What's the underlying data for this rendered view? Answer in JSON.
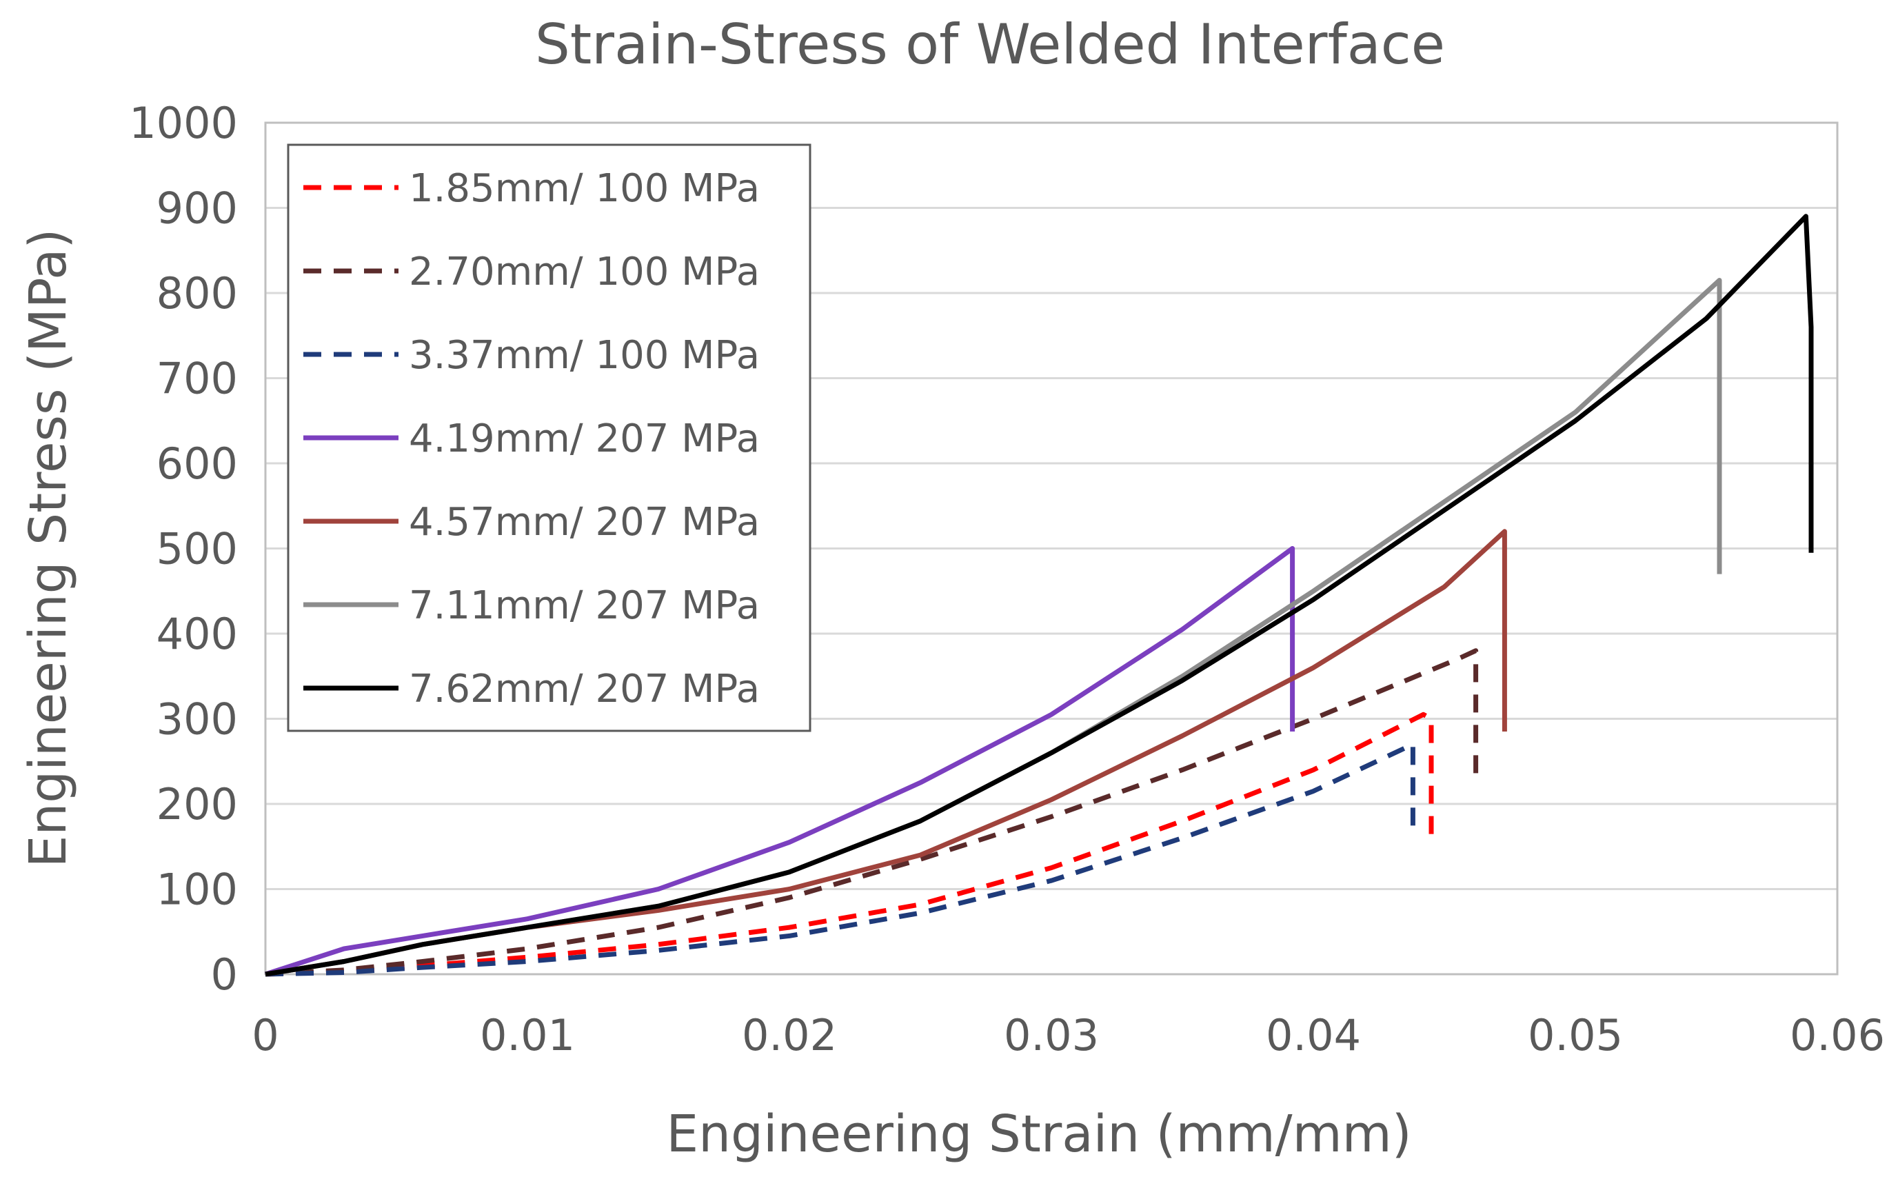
{
  "chart_data": {
    "type": "line",
    "title": "Strain-Stress of Welded Interface",
    "xlabel": "Engineering Strain (mm/mm)",
    "ylabel": "Engineering Stress (MPa)",
    "xlim": [
      0,
      0.06
    ],
    "ylim": [
      0,
      1000
    ],
    "grid": "horizontal",
    "legend_position": "top-left",
    "x_ticks": [
      0,
      0.01,
      0.02,
      0.03,
      0.04,
      0.05,
      0.06
    ],
    "x_tick_labels": [
      "0",
      "0.01",
      "0.02",
      "0.03",
      "0.04",
      "0.05",
      "0.06"
    ],
    "y_ticks": [
      0,
      100,
      200,
      300,
      400,
      500,
      600,
      700,
      800,
      900,
      1000
    ],
    "y_tick_labels": [
      "0",
      "100",
      "200",
      "300",
      "400",
      "500",
      "600",
      "700",
      "800",
      "900",
      "1000"
    ],
    "series": [
      {
        "name": "1.85mm/ 100 MPa",
        "color": "#ff0000",
        "dash": "dashed",
        "points": [
          [
            0,
            0
          ],
          [
            0.003,
            3
          ],
          [
            0.006,
            10
          ],
          [
            0.01,
            20
          ],
          [
            0.015,
            35
          ],
          [
            0.02,
            55
          ],
          [
            0.025,
            82
          ],
          [
            0.03,
            125
          ],
          [
            0.035,
            180
          ],
          [
            0.04,
            240
          ],
          [
            0.0442,
            305
          ],
          [
            0.0445,
            300
          ],
          [
            0.0445,
            160
          ]
        ]
      },
      {
        "name": "2.70mm/ 100 MPa",
        "color": "#5a2a2a",
        "dash": "dashed",
        "points": [
          [
            0,
            0
          ],
          [
            0.003,
            5
          ],
          [
            0.006,
            15
          ],
          [
            0.01,
            30
          ],
          [
            0.015,
            55
          ],
          [
            0.02,
            90
          ],
          [
            0.025,
            135
          ],
          [
            0.03,
            185
          ],
          [
            0.035,
            240
          ],
          [
            0.04,
            300
          ],
          [
            0.0455,
            370
          ],
          [
            0.0462,
            380
          ],
          [
            0.0462,
            225
          ]
        ]
      },
      {
        "name": "3.37mm/ 100 MPa",
        "color": "#1f3b7a",
        "dash": "dashed",
        "points": [
          [
            0,
            0
          ],
          [
            0.003,
            2
          ],
          [
            0.006,
            8
          ],
          [
            0.01,
            15
          ],
          [
            0.015,
            28
          ],
          [
            0.02,
            45
          ],
          [
            0.025,
            72
          ],
          [
            0.03,
            110
          ],
          [
            0.035,
            160
          ],
          [
            0.04,
            215
          ],
          [
            0.0438,
            270
          ],
          [
            0.0438,
            170
          ]
        ]
      },
      {
        "name": "4.19mm/ 207 MPa",
        "color": "#7b3fbf",
        "dash": "solid",
        "points": [
          [
            0,
            0
          ],
          [
            0.003,
            30
          ],
          [
            0.006,
            45
          ],
          [
            0.01,
            65
          ],
          [
            0.015,
            100
          ],
          [
            0.02,
            155
          ],
          [
            0.025,
            225
          ],
          [
            0.03,
            305
          ],
          [
            0.035,
            405
          ],
          [
            0.0392,
            500
          ],
          [
            0.0392,
            285
          ]
        ]
      },
      {
        "name": "4.57mm/ 207 MPa",
        "color": "#a0433c",
        "dash": "solid",
        "points": [
          [
            0,
            0
          ],
          [
            0.003,
            15
          ],
          [
            0.006,
            35
          ],
          [
            0.01,
            55
          ],
          [
            0.015,
            75
          ],
          [
            0.02,
            100
          ],
          [
            0.025,
            140
          ],
          [
            0.03,
            205
          ],
          [
            0.035,
            280
          ],
          [
            0.04,
            360
          ],
          [
            0.045,
            455
          ],
          [
            0.0473,
            520
          ],
          [
            0.0473,
            285
          ]
        ]
      },
      {
        "name": "7.11mm/ 207 MPa",
        "color": "#8c8c8c",
        "dash": "solid",
        "points": [
          [
            0,
            0
          ],
          [
            0.003,
            15
          ],
          [
            0.006,
            35
          ],
          [
            0.01,
            55
          ],
          [
            0.015,
            80
          ],
          [
            0.02,
            120
          ],
          [
            0.025,
            180
          ],
          [
            0.03,
            260
          ],
          [
            0.035,
            350
          ],
          [
            0.04,
            450
          ],
          [
            0.045,
            555
          ],
          [
            0.05,
            660
          ],
          [
            0.0555,
            815
          ],
          [
            0.0555,
            470
          ]
        ]
      },
      {
        "name": "7.62mm/ 207 MPa",
        "color": "#000000",
        "dash": "solid",
        "points": [
          [
            0,
            0
          ],
          [
            0.003,
            15
          ],
          [
            0.006,
            35
          ],
          [
            0.01,
            55
          ],
          [
            0.015,
            80
          ],
          [
            0.02,
            120
          ],
          [
            0.025,
            180
          ],
          [
            0.03,
            260
          ],
          [
            0.035,
            345
          ],
          [
            0.04,
            440
          ],
          [
            0.045,
            545
          ],
          [
            0.05,
            650
          ],
          [
            0.055,
            770
          ],
          [
            0.0588,
            890
          ],
          [
            0.059,
            760
          ],
          [
            0.059,
            495
          ]
        ]
      }
    ]
  }
}
